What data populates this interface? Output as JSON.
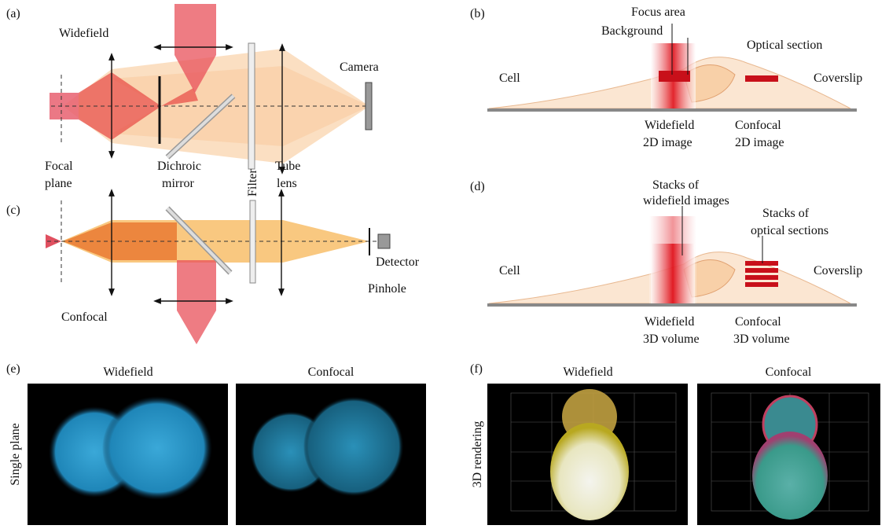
{
  "a": {
    "label": "(a)",
    "title": "Widefield",
    "focal_plane": [
      "Focal",
      "plane"
    ],
    "dichroic_mirror": [
      "Dichroic",
      "mirror"
    ],
    "filter": "Filter",
    "tube_lens": [
      "Tube",
      "lens"
    ],
    "camera": "Camera"
  },
  "b": {
    "label": "(b)",
    "focus_area": "Focus area",
    "background": "Background",
    "optical_section": "Optical section",
    "cell": "Cell",
    "coverslip": "Coverslip",
    "widefield": [
      "Widefield",
      "2D image"
    ],
    "confocal": [
      "Confocal",
      "2D image"
    ]
  },
  "c": {
    "label": "(c)",
    "title": "Confocal",
    "detector": "Detector",
    "pinhole": "Pinhole"
  },
  "d": {
    "label": "(d)",
    "stacks_widefield": [
      "Stacks of",
      "widefield images"
    ],
    "stacks_optical": [
      "Stacks of",
      "optical sections"
    ],
    "cell": "Cell",
    "coverslip": "Coverslip",
    "widefield": [
      "Widefield",
      "3D volume"
    ],
    "confocal": [
      "Confocal",
      "3D volume"
    ]
  },
  "e": {
    "label": "(e)",
    "row_label": "Single plane",
    "columns": [
      "Widefield",
      "Confocal"
    ]
  },
  "f": {
    "label": "(f)",
    "row_label": "3D rendering",
    "columns": [
      "Widefield",
      "Confocal"
    ]
  }
}
